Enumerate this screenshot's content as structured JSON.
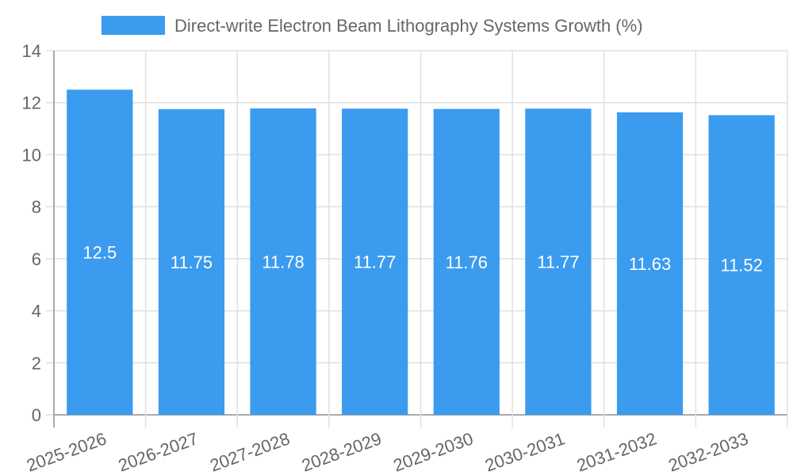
{
  "chart_data": {
    "type": "bar",
    "title": "",
    "legend": [
      {
        "label": "Direct-write Electron Beam Lithography Systems Growth (%)",
        "color": "#3a9bef"
      }
    ],
    "legend_position": "top",
    "categories": [
      "2025-2026",
      "2026-2027",
      "2027-2028",
      "2028-2029",
      "2029-2030",
      "2030-2031",
      "2031-2032",
      "2032-2033"
    ],
    "series": [
      {
        "name": "Direct-write Electron Beam Lithography Systems Growth (%)",
        "values": [
          12.5,
          11.75,
          11.78,
          11.77,
          11.76,
          11.77,
          11.63,
          11.52
        ],
        "color": "#3a9bef"
      }
    ],
    "xlabel": "",
    "ylabel": "",
    "ylim": [
      0,
      14
    ],
    "yticks": [
      0,
      2,
      4,
      6,
      8,
      10,
      12,
      14
    ],
    "grid": true,
    "data_labels": true
  },
  "legend": {
    "label": "Direct-write Electron Beam Lithography Systems Growth (%)",
    "color": "#3a9bef"
  }
}
